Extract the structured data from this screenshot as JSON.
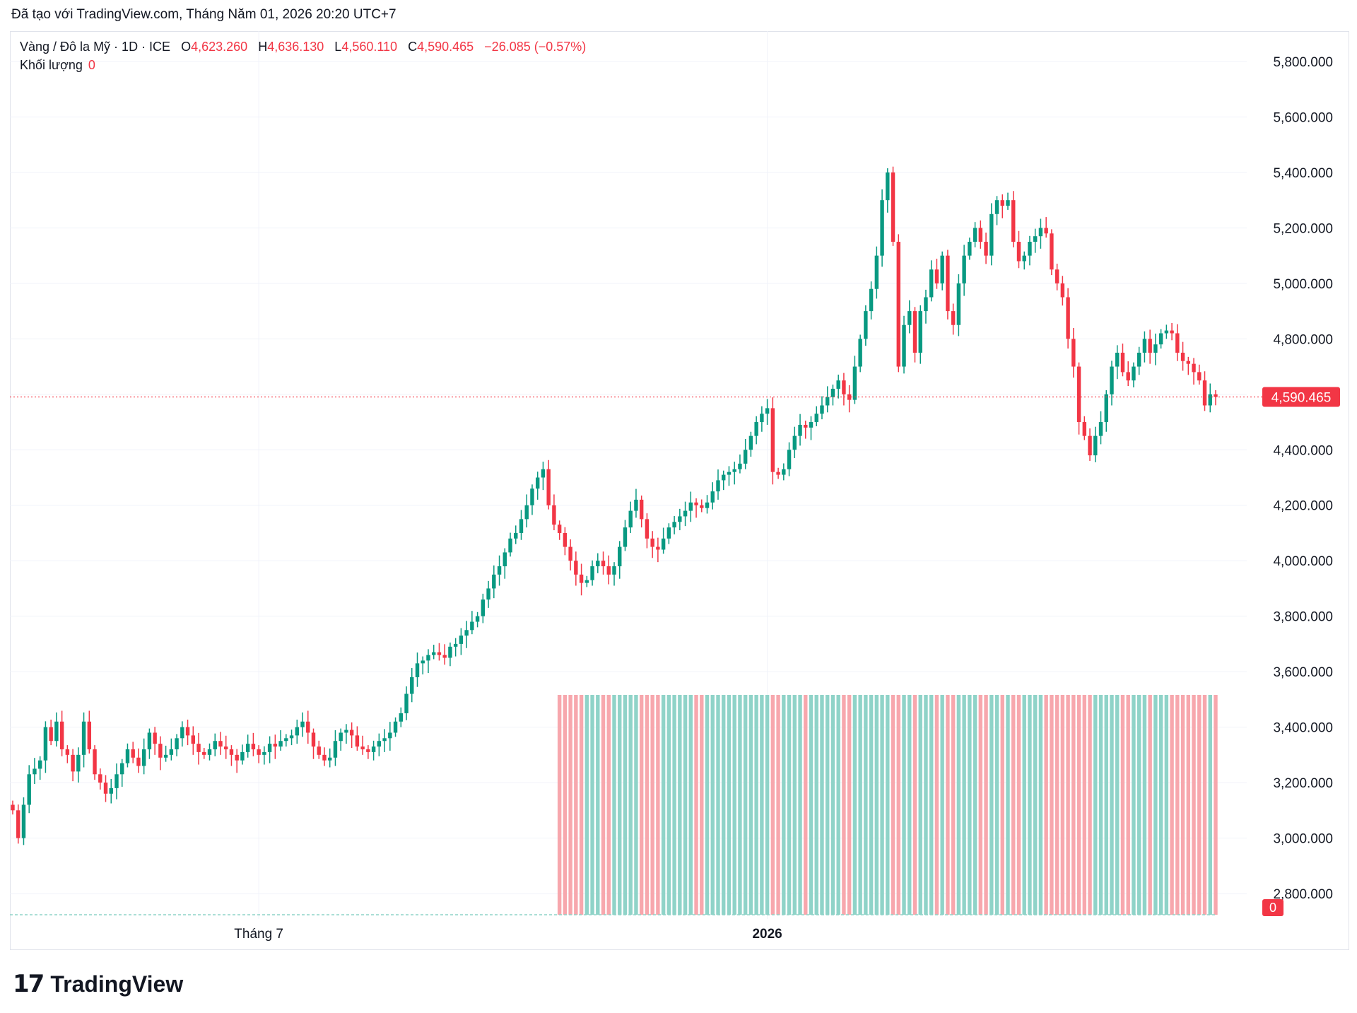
{
  "header": {
    "created_with": "Đã tạo với TradingView.com, Tháng Năm 01, 2026 20:20 UTC+7"
  },
  "legend": {
    "symbol": "Vàng / Đô la Mỹ · 1D · ICE",
    "open_label": "O",
    "open": "4,623.260",
    "high_label": "H",
    "high": "4,636.130",
    "low_label": "L",
    "low": "4,560.110",
    "close_label": "C",
    "close": "4,590.465",
    "change": "−26.085 (−0.57%)",
    "volume_label": "Khối lượng",
    "volume": "0"
  },
  "footer": {
    "brand": "TradingView",
    "logo_mark": "17"
  },
  "colors": {
    "up": "#089981",
    "down": "#f23645",
    "up_vol": "#8fd3c8",
    "down_vol": "#f7a7ad",
    "grid": "#f0f3fa"
  },
  "chart_data": {
    "type": "candlestick",
    "title": "Vàng / Đô la Mỹ · 1D · ICE",
    "ylim": [
      2700,
      5900
    ],
    "y_ticks": [
      "5,800.000",
      "5,600.000",
      "5,400.000",
      "5,200.000",
      "5,000.000",
      "4,800.000",
      "4,600.000",
      "4,400.000",
      "4,200.000",
      "4,000.000",
      "3,800.000",
      "3,600.000",
      "3,400.000",
      "3,200.000",
      "3,000.000",
      "2,800.000"
    ],
    "y_tick_values": [
      5800,
      5600,
      5400,
      5200,
      5000,
      4800,
      4600,
      4400,
      4200,
      4000,
      3800,
      3600,
      3400,
      3200,
      3000,
      2800
    ],
    "x_ticks": [
      {
        "label": "Tháng 7",
        "index": 45,
        "bold": false
      },
      {
        "label": "2026",
        "index": 138,
        "bold": true
      }
    ],
    "last_price": 4590.465,
    "last_price_label": "4,590.465",
    "volume_last_label": "0",
    "volume_start_index": 100,
    "close_path": [
      3100,
      3000,
      3120,
      3230,
      3250,
      3280,
      3400,
      3350,
      3420,
      3320,
      3300,
      3240,
      3300,
      3420,
      3320,
      3230,
      3200,
      3160,
      3180,
      3230,
      3270,
      3320,
      3290,
      3260,
      3320,
      3380,
      3340,
      3290,
      3300,
      3320,
      3360,
      3400,
      3370,
      3340,
      3310,
      3300,
      3320,
      3350,
      3330,
      3320,
      3300,
      3280,
      3310,
      3340,
      3320,
      3300,
      3310,
      3340,
      3330,
      3350,
      3360,
      3370,
      3400,
      3420,
      3380,
      3330,
      3300,
      3280,
      3290,
      3350,
      3380,
      3390,
      3370,
      3330,
      3320,
      3310,
      3330,
      3350,
      3360,
      3380,
      3420,
      3450,
      3520,
      3580,
      3630,
      3640,
      3660,
      3670,
      3660,
      3650,
      3690,
      3700,
      3730,
      3750,
      3780,
      3800,
      3860,
      3900,
      3950,
      3980,
      4030,
      4080,
      4100,
      4150,
      4200,
      4260,
      4300,
      4330,
      4200,
      4130,
      4100,
      4050,
      4000,
      3950,
      3920,
      3930,
      3980,
      4000,
      3980,
      3950,
      3980,
      4050,
      4120,
      4180,
      4220,
      4150,
      4080,
      4050,
      4040,
      4080,
      4120,
      4140,
      4160,
      4180,
      4210,
      4200,
      4190,
      4210,
      4250,
      4290,
      4310,
      4320,
      4330,
      4350,
      4400,
      4450,
      4500,
      4530,
      4550,
      4320,
      4310,
      4330,
      4400,
      4450,
      4490,
      4480,
      4500,
      4530,
      4560,
      4590,
      4620,
      4650,
      4600,
      4580,
      4700,
      4800,
      4900,
      4980,
      5100,
      5300,
      5400,
      5150,
      4700,
      4850,
      4900,
      4750,
      4900,
      4950,
      5050,
      5000,
      5100,
      4900,
      4850,
      5000,
      5100,
      5150,
      5200,
      5150,
      5100,
      5250,
      5300,
      5280,
      5300,
      5150,
      5080,
      5100,
      5150,
      5170,
      5200,
      5180,
      5050,
      5000,
      4950,
      4800,
      4700,
      4500,
      4450,
      4380,
      4450,
      4500,
      4600,
      4700,
      4750,
      4680,
      4650,
      4700,
      4750,
      4800,
      4750,
      4780,
      4820,
      4830,
      4820,
      4750,
      4720,
      4710,
      4680,
      4650,
      4560,
      4600,
      4590.465
    ]
  }
}
